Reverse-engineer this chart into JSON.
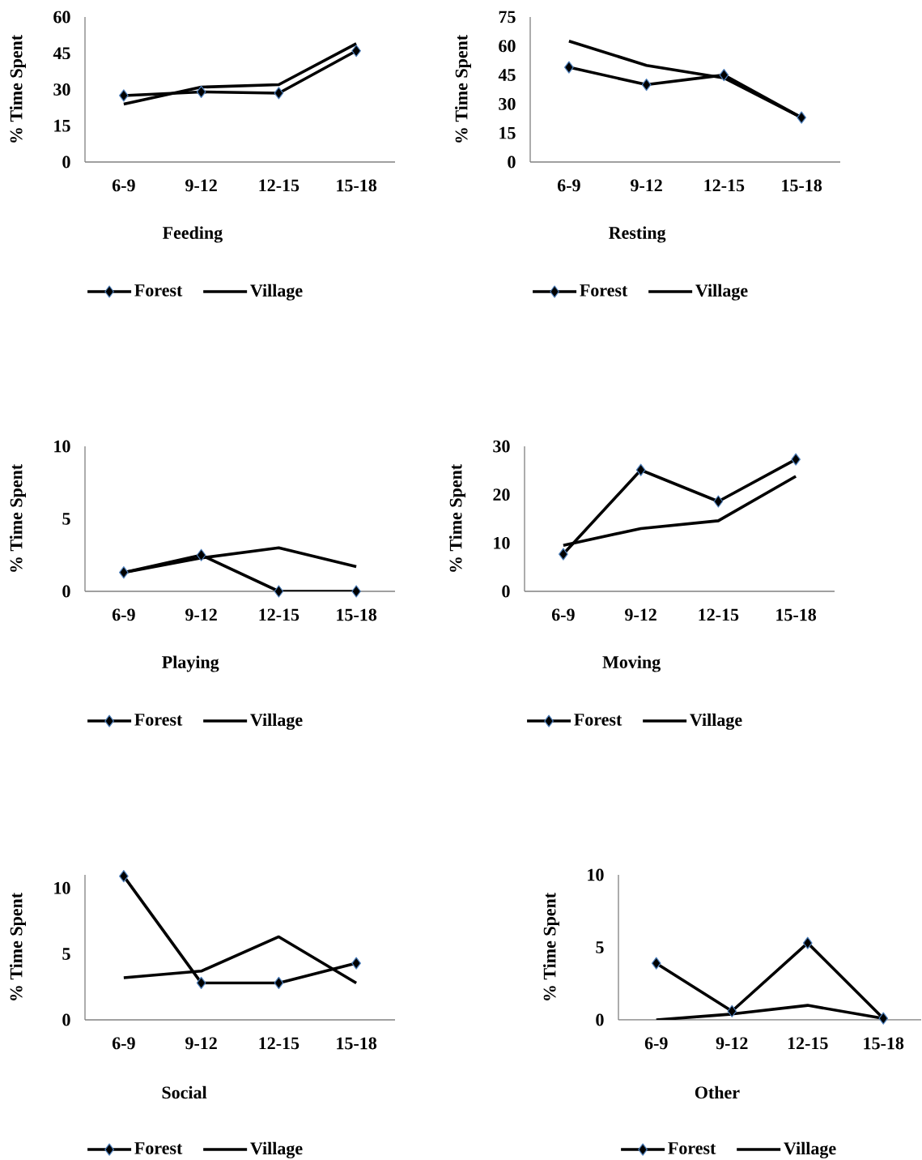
{
  "chart_data": [
    {
      "type": "line",
      "categories": [
        "6-9",
        "9-12",
        "12-15",
        "15-18"
      ],
      "xlabel": "Feeding",
      "ylabel": "% Time Spent",
      "ylim": [
        0,
        60
      ],
      "yticks": [
        0,
        15,
        30,
        45,
        60
      ],
      "legend": "bottom",
      "series": [
        {
          "name": "Forest",
          "color": "#000000",
          "marker": "diamond",
          "values": [
            27.5,
            29,
            28.5,
            46
          ]
        },
        {
          "name": "Village",
          "color": "#000000",
          "marker": "none",
          "values": [
            24,
            31,
            32,
            49
          ]
        }
      ]
    },
    {
      "type": "line",
      "categories": [
        "6-9",
        "9-12",
        "12-15",
        "15-18"
      ],
      "xlabel": "Resting",
      "ylabel": "% Time Spent",
      "ylim": [
        0,
        75
      ],
      "yticks": [
        0,
        15,
        30,
        45,
        60,
        75
      ],
      "legend": "bottom",
      "series": [
        {
          "name": "Forest",
          "color": "#000000",
          "marker": "diamond",
          "values": [
            49,
            40,
            45,
            23
          ]
        },
        {
          "name": "Village",
          "color": "#000000",
          "marker": "none",
          "values": [
            62.5,
            50,
            43.5,
            23
          ]
        }
      ]
    },
    {
      "type": "line",
      "categories": [
        "6-9",
        "9-12",
        "12-15",
        "15-18"
      ],
      "xlabel": "Playing",
      "ylabel": "% Time Spent",
      "ylim": [
        0,
        10
      ],
      "yticks": [
        0,
        5,
        10
      ],
      "legend": "bottom",
      "series": [
        {
          "name": "Forest",
          "color": "#000000",
          "marker": "diamond",
          "values": [
            1.3,
            2.5,
            0,
            0
          ]
        },
        {
          "name": "Village",
          "color": "#000000",
          "marker": "none",
          "values": [
            1.3,
            2.3,
            3.0,
            1.7
          ]
        }
      ]
    },
    {
      "type": "line",
      "categories": [
        "6-9",
        "9-12",
        "12-15",
        "15-18"
      ],
      "xlabel": "Moving",
      "ylabel": "% Time Spent",
      "ylim": [
        0,
        30
      ],
      "yticks": [
        0,
        10,
        20,
        30
      ],
      "legend": "bottom",
      "series": [
        {
          "name": "Forest",
          "color": "#000000",
          "marker": "diamond",
          "values": [
            7.7,
            25.1,
            18.6,
            27.3
          ]
        },
        {
          "name": "Village",
          "color": "#000000",
          "marker": "none",
          "values": [
            9.5,
            13,
            14.6,
            23.8
          ]
        }
      ]
    },
    {
      "type": "line",
      "categories": [
        "6-9",
        "9-12",
        "12-15",
        "15-18"
      ],
      "xlabel": "Social",
      "ylabel": "% Time Spent",
      "ylim": [
        0,
        11
      ],
      "yticks": [
        0,
        5,
        10
      ],
      "legend": "bottom",
      "series": [
        {
          "name": "Forest",
          "color": "#000000",
          "marker": "diamond",
          "values": [
            10.9,
            2.8,
            2.8,
            4.3
          ]
        },
        {
          "name": "Village",
          "color": "#000000",
          "marker": "none",
          "values": [
            3.2,
            3.7,
            6.3,
            2.8
          ]
        }
      ]
    },
    {
      "type": "line",
      "categories": [
        "6-9",
        "9-12",
        "12-15",
        "15-18"
      ],
      "xlabel": "Other",
      "ylabel": "% Time Spent",
      "ylim": [
        0,
        10
      ],
      "yticks": [
        0,
        5,
        10
      ],
      "legend": "bottom",
      "series": [
        {
          "name": "Forest",
          "color": "#000000",
          "marker": "diamond",
          "values": [
            3.9,
            0.6,
            5.3,
            0.1
          ]
        },
        {
          "name": "Village",
          "color": "#000000",
          "marker": "none",
          "values": [
            0,
            0.4,
            1.0,
            0.1
          ]
        }
      ]
    }
  ]
}
